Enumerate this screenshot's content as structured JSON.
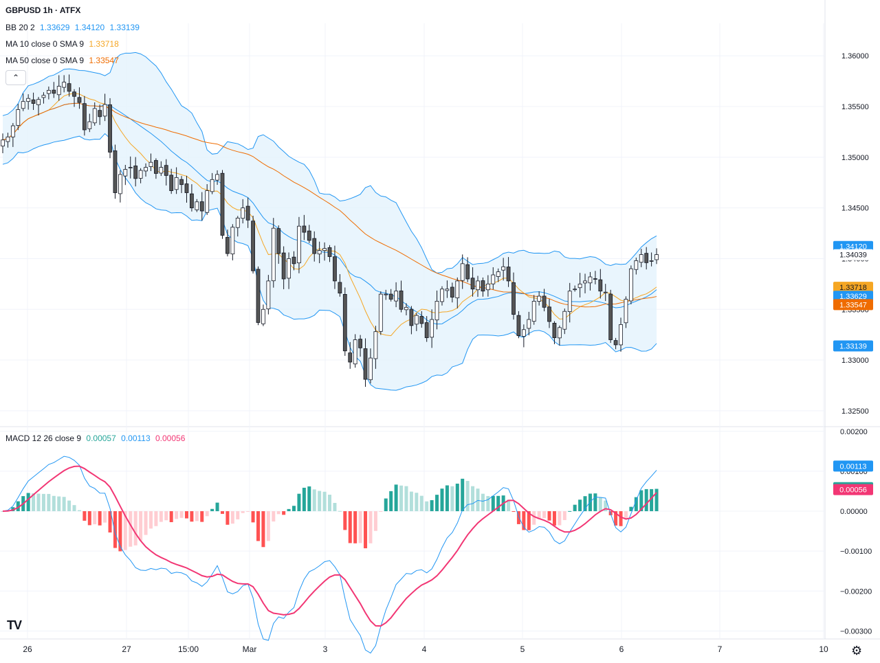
{
  "header": {
    "title": "GBPUSD 1h · ATFX",
    "bb": {
      "label": "BB 20 2",
      "basis": "1.33629",
      "upper": "1.34120",
      "lower": "1.33139"
    },
    "ma10": {
      "label": "MA 10 close 0 SMA 9",
      "value": "1.33718"
    },
    "ma50": {
      "label": "MA 50 close 0 SMA 9",
      "value": "1.33547"
    },
    "collapse_symbol": "⌃"
  },
  "macd_header": {
    "label": "MACD 12 26 close 9",
    "hist": "0.00057",
    "macd": "0.00113",
    "signal": "0.00056"
  },
  "price_axis": {
    "ticks": [
      "1.36000",
      "1.35500",
      "1.35000",
      "1.34500",
      "1.34000",
      "1.33500",
      "1.33000",
      "1.32500"
    ]
  },
  "macd_axis": {
    "ticks": [
      "0.00200",
      "0.00100",
      "0.00000",
      "−0.00100",
      "−0.00200",
      "−0.00300"
    ]
  },
  "time_axis": {
    "ticks": [
      "26",
      "27",
      "15:00",
      "Mar",
      "3",
      "4",
      "5",
      "6",
      "7",
      "10"
    ]
  },
  "price_badges": [
    {
      "text": "1.34120",
      "bg": "#2196f3",
      "fg": "#ffffff"
    },
    {
      "text": "1.34039",
      "bg": "#ffffff",
      "fg": "#131722"
    },
    {
      "text": "1.33718",
      "bg": "#f5a623",
      "fg": "#131722"
    },
    {
      "text": "1.33629",
      "bg": "#2196f3",
      "fg": "#ffffff"
    },
    {
      "text": "1.33547",
      "bg": "#ef6c00",
      "fg": "#ffffff"
    },
    {
      "text": "1.33139",
      "bg": "#2196f3",
      "fg": "#ffffff"
    }
  ],
  "macd_badges": [
    {
      "text": "0.00113",
      "bg": "#2196f3",
      "fg": "#ffffff"
    },
    {
      "text": "0.00057",
      "bg": "#26a69a",
      "fg": "#ffffff"
    },
    {
      "text": "0.00056",
      "bg": "#f23674",
      "fg": "#ffffff"
    }
  ],
  "logo_text": "TV",
  "settings_icon": "gear-icon",
  "colors": {
    "bb_line": "#2196f3",
    "bb_fill": "#e3f2fd",
    "ma10": "#f5a623",
    "ma50": "#ef6c00",
    "candle_up": "#ffffff",
    "candle_down": "#555555",
    "candle_border": "#131722",
    "macd_line": "#2196f3",
    "signal_line": "#f23674",
    "hist_up_strong": "#26a69a",
    "hist_up_weak": "#b2dfdb",
    "hist_down_strong": "#ff5252",
    "hist_down_weak": "#ffcdd2"
  },
  "chart_data": [
    {
      "type": "candlestick",
      "title": "GBPUSD 1h · ATFX",
      "ylim": [
        1.3235,
        1.3632
      ],
      "x_ticks": [
        "26",
        "27",
        "15:00",
        "Mar",
        "3",
        "4",
        "5",
        "6",
        "7",
        "10"
      ],
      "close_series": [
        1.3517,
        1.352,
        1.3531,
        1.3547,
        1.3555,
        1.3558,
        1.3553,
        1.3557,
        1.3561,
        1.3566,
        1.3563,
        1.357,
        1.3574,
        1.3565,
        1.356,
        1.3554,
        1.3527,
        1.3535,
        1.3548,
        1.354,
        1.3552,
        1.3505,
        1.3465,
        1.3483,
        1.3488,
        1.349,
        1.3479,
        1.3487,
        1.349,
        1.3495,
        1.3484,
        1.349,
        1.3482,
        1.3467,
        1.348,
        1.3473,
        1.3465,
        1.345,
        1.3456,
        1.3447,
        1.3467,
        1.3478,
        1.3483,
        1.3423,
        1.3405,
        1.3431,
        1.344,
        1.345,
        1.3438,
        1.3388,
        1.3337,
        1.335,
        1.3378,
        1.343,
        1.3405,
        1.338,
        1.34,
        1.3395,
        1.3432,
        1.3426,
        1.3418,
        1.3405,
        1.3408,
        1.341,
        1.3402,
        1.3378,
        1.3366,
        1.3309,
        1.3298,
        1.332,
        1.3312,
        1.3281,
        1.3302,
        1.3328,
        1.3365,
        1.3365,
        1.336,
        1.3368,
        1.335,
        1.3352,
        1.3334,
        1.3344,
        1.3336,
        1.3322,
        1.334,
        1.3358,
        1.337,
        1.337,
        1.3362,
        1.3378,
        1.3395,
        1.338,
        1.337,
        1.3378,
        1.3368,
        1.3375,
        1.3384,
        1.3387,
        1.3392,
        1.3378,
        1.3345,
        1.3324,
        1.333,
        1.334,
        1.3358,
        1.3363,
        1.3352,
        1.3338,
        1.3322,
        1.3332,
        1.3348,
        1.3368,
        1.337,
        1.3375,
        1.3378,
        1.3382,
        1.338,
        1.3368,
        1.3367,
        1.332,
        1.3315,
        1.3335,
        1.336,
        1.339,
        1.3398,
        1.3404,
        1.3396,
        1.3398,
        1.3404
      ],
      "bb": {
        "basis_last": 1.33629,
        "upper_last": 1.3412,
        "lower_last": 1.33139,
        "period": 20,
        "mult": 2
      },
      "ma10_last": 1.33718,
      "ma50_last": 1.33547,
      "last_price": 1.34039
    },
    {
      "type": "macd",
      "title": "MACD 12 26 close 9",
      "ylim": [
        -0.0032,
        0.0021
      ],
      "params": {
        "fast": 12,
        "slow": 26,
        "signal": 9
      },
      "last": {
        "histogram": 0.00057,
        "macd": 0.00113,
        "signal": 0.00056
      }
    }
  ]
}
